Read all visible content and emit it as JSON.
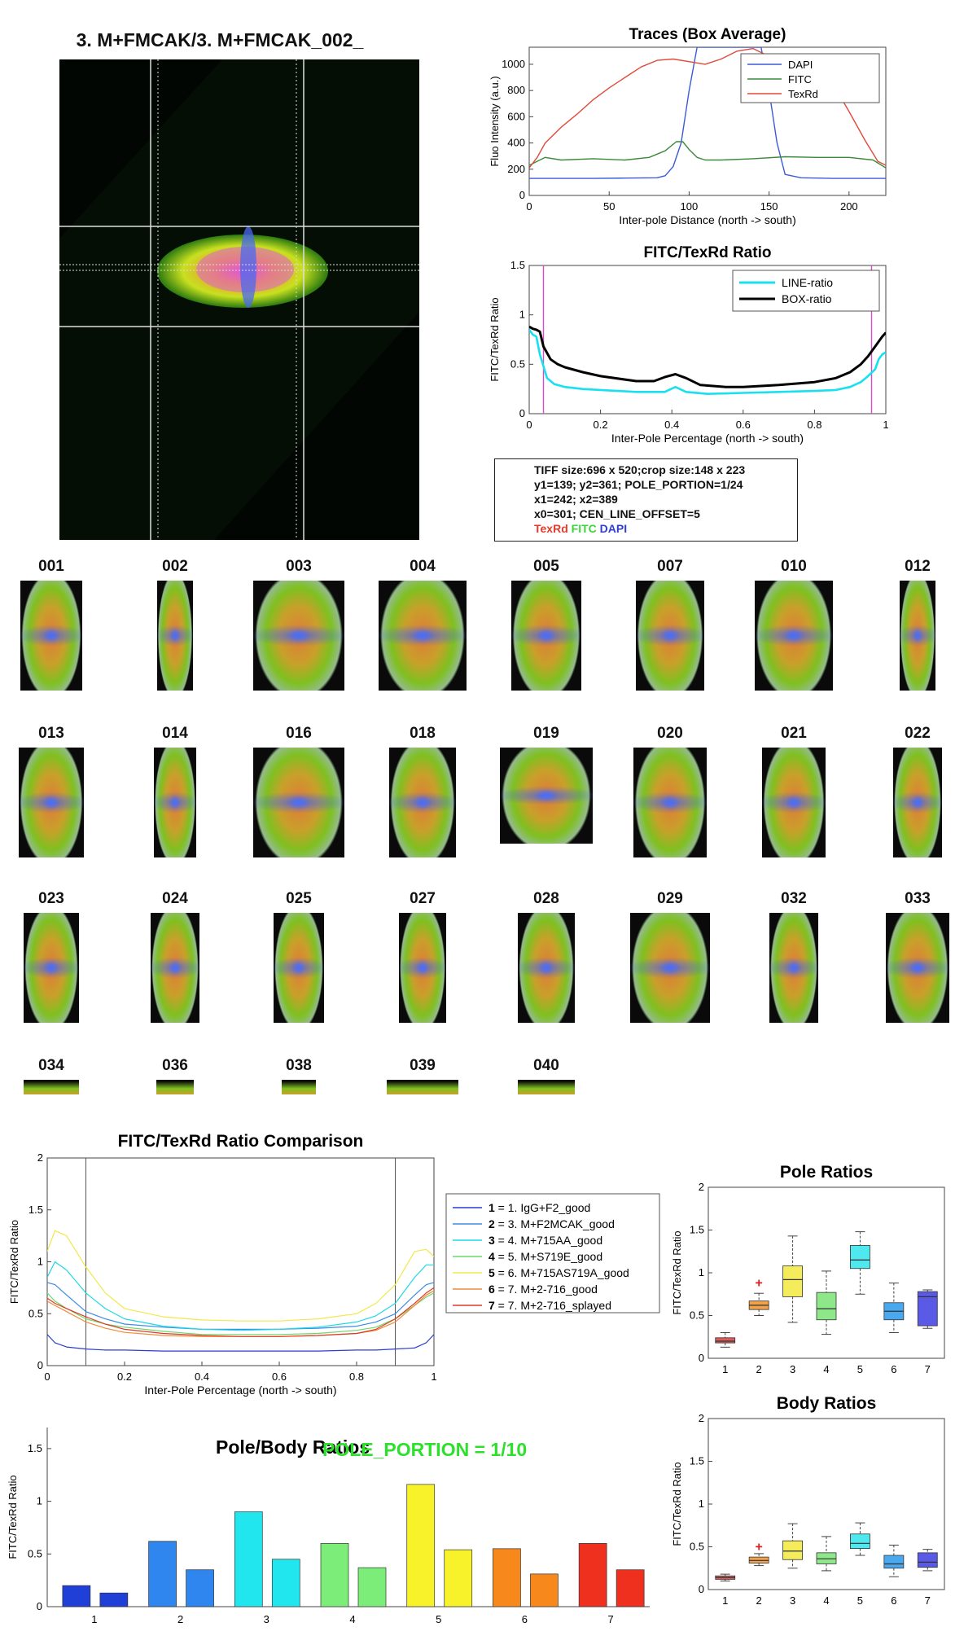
{
  "main_image": {
    "title": "3. M+FMCAK/3. M+FMCAK_002_"
  },
  "info_box": {
    "lines": [
      "TIFF size:696 x 520;crop size:148 x 223",
      "y1=139; y2=361; POLE_PORTION=1/24",
      "x1=242; x2=389",
      "x0=301; CEN_LINE_OFFSET=5"
    ],
    "channels": [
      {
        "label": "TexRd",
        "color": "#e23b2a"
      },
      {
        "label": "FITC",
        "color": "#3ad43a"
      },
      {
        "label": "DAPI",
        "color": "#2f3fd0"
      }
    ]
  },
  "thumbnails": {
    "row1": [
      "001",
      "002",
      "003",
      "004",
      "005",
      "007",
      "010",
      "012"
    ],
    "row2": [
      "013",
      "014",
      "016",
      "018",
      "019",
      "020",
      "021",
      "022"
    ],
    "row3": [
      "023",
      "024",
      "025",
      "027",
      "028",
      "029",
      "032",
      "033"
    ],
    "row4": [
      "034",
      "036",
      "038",
      "039",
      "040"
    ]
  },
  "pole_portion_label": "POLE_PORTION = 1/10",
  "colors": {
    "dapi": "#3b5bd6",
    "fitc": "#3a8a3a",
    "texrd": "#e04a3a",
    "line_ratio": "#18e0f0",
    "box_ratio": "#000000",
    "pole_line": "#d44fc4"
  },
  "chart_data": [
    {
      "id": "traces",
      "type": "line",
      "title": "Traces (Box Average)",
      "xlabel": "Inter-pole Distance (north -> south)",
      "ylabel": "Fluo Intensity (a.u.)",
      "xlim": [
        0,
        223
      ],
      "ylim": [
        0,
        1130
      ],
      "xticks": [
        0,
        50,
        100,
        150,
        200
      ],
      "yticks": [
        0,
        200,
        400,
        600,
        800,
        1000
      ],
      "legend": "top-right",
      "series": [
        {
          "name": "DAPI",
          "color": "#3b5bd6",
          "x": [
            0,
            20,
            40,
            60,
            80,
            85,
            90,
            95,
            100,
            105,
            110,
            115,
            120,
            125,
            130,
            135,
            140,
            145,
            150,
            155,
            160,
            170,
            190,
            223
          ],
          "y": [
            130,
            130,
            130,
            132,
            135,
            150,
            220,
            400,
            800,
            1130,
            1130,
            1130,
            1130,
            1130,
            1130,
            1130,
            1130,
            1130,
            800,
            400,
            160,
            135,
            130,
            130
          ]
        },
        {
          "name": "FITC",
          "color": "#3a8a3a",
          "x": [
            0,
            10,
            20,
            40,
            60,
            75,
            85,
            92,
            96,
            100,
            105,
            110,
            120,
            140,
            160,
            180,
            200,
            215,
            223
          ],
          "y": [
            230,
            290,
            270,
            280,
            270,
            290,
            340,
            410,
            410,
            350,
            290,
            270,
            270,
            280,
            295,
            290,
            290,
            270,
            210
          ]
        },
        {
          "name": "TexRd",
          "color": "#e04a3a",
          "x": [
            0,
            5,
            10,
            20,
            30,
            40,
            50,
            60,
            70,
            80,
            90,
            100,
            110,
            120,
            130,
            140,
            150,
            160,
            170,
            180,
            190,
            200,
            210,
            218,
            223
          ],
          "y": [
            210,
            290,
            400,
            520,
            620,
            730,
            820,
            900,
            980,
            1030,
            1040,
            1020,
            1000,
            1040,
            1100,
            1120,
            1060,
            1010,
            980,
            950,
            850,
            640,
            420,
            260,
            230
          ]
        }
      ]
    },
    {
      "id": "ratio",
      "type": "line",
      "title": "FITC/TexRd Ratio",
      "xlabel": "Inter-Pole Percentage (north -> south)",
      "ylabel": "FITC/TexRd Ratio",
      "xlim": [
        0,
        1
      ],
      "ylim": [
        0,
        1.5
      ],
      "xticks": [
        0,
        0.2,
        0.4,
        0.6,
        0.8,
        1
      ],
      "yticks": [
        0,
        0.5,
        1,
        1.5
      ],
      "pole_lines": [
        0.04,
        0.96
      ],
      "legend": "top-right",
      "series": [
        {
          "name": "LINE-ratio",
          "color": "#18e0f0",
          "x": [
            0,
            0.01,
            0.02,
            0.03,
            0.05,
            0.07,
            0.1,
            0.15,
            0.2,
            0.3,
            0.38,
            0.41,
            0.44,
            0.5,
            0.6,
            0.7,
            0.8,
            0.86,
            0.9,
            0.93,
            0.95,
            0.97,
            0.98,
            0.99,
            1
          ],
          "y": [
            0.85,
            0.8,
            0.78,
            0.6,
            0.36,
            0.3,
            0.27,
            0.25,
            0.24,
            0.22,
            0.22,
            0.27,
            0.22,
            0.2,
            0.21,
            0.22,
            0.23,
            0.24,
            0.27,
            0.32,
            0.38,
            0.45,
            0.55,
            0.6,
            0.62
          ]
        },
        {
          "name": "BOX-ratio",
          "color": "#000000",
          "x": [
            0,
            0.01,
            0.02,
            0.03,
            0.04,
            0.06,
            0.08,
            0.1,
            0.15,
            0.2,
            0.3,
            0.35,
            0.38,
            0.41,
            0.44,
            0.48,
            0.55,
            0.6,
            0.7,
            0.8,
            0.86,
            0.9,
            0.93,
            0.95,
            0.97,
            0.99,
            1
          ],
          "y": [
            0.88,
            0.86,
            0.85,
            0.83,
            0.68,
            0.55,
            0.5,
            0.47,
            0.42,
            0.38,
            0.33,
            0.33,
            0.37,
            0.4,
            0.36,
            0.29,
            0.27,
            0.27,
            0.29,
            0.32,
            0.36,
            0.42,
            0.5,
            0.58,
            0.68,
            0.78,
            0.82
          ]
        }
      ]
    },
    {
      "id": "comparison",
      "type": "line",
      "title": "FITC/TexRd Ratio Comparison",
      "xlabel": "Inter-Pole Percentage (north -> south)",
      "ylabel": "FITC/TexRd Ratio",
      "xlim": [
        0,
        1
      ],
      "ylim": [
        0,
        2
      ],
      "xticks": [
        0,
        0.2,
        0.4,
        0.6,
        0.8,
        1
      ],
      "yticks": [
        0,
        0.5,
        1,
        1.5,
        2
      ],
      "vlines": [
        0.1,
        0.9
      ],
      "legend": "right",
      "x": [
        0,
        0.02,
        0.05,
        0.1,
        0.15,
        0.2,
        0.3,
        0.4,
        0.5,
        0.6,
        0.7,
        0.8,
        0.85,
        0.9,
        0.95,
        0.98,
        1
      ],
      "series": [
        {
          "key": "1",
          "name": "1. IgG+F2_good",
          "color": "#2a3ccf",
          "values": [
            0.3,
            0.22,
            0.18,
            0.16,
            0.15,
            0.15,
            0.14,
            0.14,
            0.14,
            0.14,
            0.14,
            0.15,
            0.15,
            0.16,
            0.17,
            0.22,
            0.3
          ]
        },
        {
          "key": "2",
          "name": "3. M+F2MCAK_good",
          "color": "#3a8be6",
          "values": [
            0.8,
            0.78,
            0.68,
            0.52,
            0.45,
            0.4,
            0.37,
            0.35,
            0.35,
            0.35,
            0.36,
            0.38,
            0.42,
            0.5,
            0.68,
            0.78,
            0.8
          ]
        },
        {
          "key": "3",
          "name": "4. M+715AA_good",
          "color": "#20d8e8",
          "values": [
            0.85,
            1.0,
            0.92,
            0.7,
            0.55,
            0.45,
            0.38,
            0.35,
            0.34,
            0.35,
            0.37,
            0.42,
            0.48,
            0.6,
            0.85,
            0.97,
            0.97
          ]
        },
        {
          "key": "4",
          "name": "5. M+S719E_good",
          "color": "#6bd86b",
          "values": [
            0.7,
            0.62,
            0.55,
            0.45,
            0.4,
            0.37,
            0.33,
            0.3,
            0.3,
            0.3,
            0.31,
            0.34,
            0.37,
            0.45,
            0.58,
            0.66,
            0.7
          ]
        },
        {
          "key": "5",
          "name": "6. M+715AS719A_good",
          "color": "#f2e84a",
          "values": [
            1.1,
            1.3,
            1.25,
            0.95,
            0.7,
            0.55,
            0.47,
            0.44,
            0.43,
            0.43,
            0.45,
            0.5,
            0.6,
            0.78,
            1.1,
            1.12,
            1.05
          ]
        },
        {
          "key": "6",
          "name": "7. M+2-716_good",
          "color": "#f08a3a",
          "values": [
            0.62,
            0.58,
            0.52,
            0.42,
            0.36,
            0.32,
            0.29,
            0.28,
            0.28,
            0.28,
            0.29,
            0.31,
            0.34,
            0.42,
            0.58,
            0.68,
            0.72
          ]
        },
        {
          "key": "7",
          "name": "7. M+2-716_splayed",
          "color": "#e03a2a",
          "values": [
            0.65,
            0.6,
            0.55,
            0.47,
            0.4,
            0.35,
            0.31,
            0.29,
            0.28,
            0.28,
            0.29,
            0.31,
            0.35,
            0.45,
            0.6,
            0.7,
            0.75
          ]
        }
      ]
    },
    {
      "id": "pole_body",
      "type": "bar",
      "title": "Pole/Body Ratios",
      "xlabel": "",
      "ylabel": "FITC/TexRd Ratio",
      "ylim": [
        0,
        1.7
      ],
      "yticks": [
        0,
        0.5,
        1,
        1.5
      ],
      "categories": [
        "1",
        "2",
        "3",
        "4",
        "5",
        "6",
        "7"
      ],
      "colors": [
        "#1f3fd6",
        "#2f86ee",
        "#22e6ee",
        "#7ded7a",
        "#f7f22a",
        "#f6881c",
        "#f0301e"
      ],
      "series": [
        {
          "values": [
            0.2,
            0.62,
            0.9,
            0.6,
            1.16,
            0.55,
            0.6
          ]
        },
        {
          "values": [
            0.13,
            0.35,
            0.45,
            0.37,
            0.54,
            0.31,
            0.35
          ]
        }
      ]
    },
    {
      "id": "pole_box",
      "type": "box",
      "title": "Pole Ratios",
      "xlabel": "",
      "ylabel": "FITC/TexRd Ratio",
      "ylim": [
        0,
        2
      ],
      "yticks": [
        0,
        0.5,
        1,
        1.5,
        2
      ],
      "categories": [
        "1",
        "2",
        "3",
        "4",
        "5",
        "6",
        "7"
      ],
      "colors": [
        "#e05a5a",
        "#f2a24a",
        "#f4ec5a",
        "#8ee88a",
        "#4ee8ee",
        "#4aa8ee",
        "#5a5ae6"
      ],
      "boxes": [
        {
          "min": 0.13,
          "q1": 0.18,
          "median": 0.2,
          "q3": 0.24,
          "max": 0.3,
          "outliers": []
        },
        {
          "min": 0.5,
          "q1": 0.57,
          "median": 0.62,
          "q3": 0.67,
          "max": 0.76,
          "outliers": [
            0.88
          ]
        },
        {
          "min": 0.42,
          "q1": 0.72,
          "median": 0.92,
          "q3": 1.08,
          "max": 1.43,
          "outliers": []
        },
        {
          "min": 0.28,
          "q1": 0.45,
          "median": 0.58,
          "q3": 0.77,
          "max": 1.02,
          "outliers": []
        },
        {
          "min": 0.75,
          "q1": 1.05,
          "median": 1.15,
          "q3": 1.32,
          "max": 1.48,
          "outliers": []
        },
        {
          "min": 0.3,
          "q1": 0.45,
          "median": 0.55,
          "q3": 0.65,
          "max": 0.88,
          "outliers": []
        },
        {
          "min": 0.35,
          "q1": 0.38,
          "median": 0.72,
          "q3": 0.78,
          "max": 0.8,
          "outliers": []
        }
      ]
    },
    {
      "id": "body_box",
      "type": "box",
      "title": "Body Ratios",
      "xlabel": "",
      "ylabel": "FITC/TexRd Ratio",
      "ylim": [
        0,
        2
      ],
      "yticks": [
        0,
        0.5,
        1,
        1.5,
        2
      ],
      "categories": [
        "1",
        "2",
        "3",
        "4",
        "5",
        "6",
        "7"
      ],
      "colors": [
        "#e05a5a",
        "#f2a24a",
        "#f4ec5a",
        "#8ee88a",
        "#4ee8ee",
        "#4aa8ee",
        "#5a5ae6"
      ],
      "boxes": [
        {
          "min": 0.1,
          "q1": 0.12,
          "median": 0.14,
          "q3": 0.16,
          "max": 0.18,
          "outliers": []
        },
        {
          "min": 0.28,
          "q1": 0.31,
          "median": 0.34,
          "q3": 0.38,
          "max": 0.42,
          "outliers": [
            0.5
          ]
        },
        {
          "min": 0.25,
          "q1": 0.35,
          "median": 0.45,
          "q3": 0.57,
          "max": 0.77,
          "outliers": []
        },
        {
          "min": 0.22,
          "q1": 0.3,
          "median": 0.36,
          "q3": 0.43,
          "max": 0.62,
          "outliers": []
        },
        {
          "min": 0.4,
          "q1": 0.48,
          "median": 0.54,
          "q3": 0.65,
          "max": 0.78,
          "outliers": []
        },
        {
          "min": 0.15,
          "q1": 0.25,
          "median": 0.3,
          "q3": 0.4,
          "max": 0.52,
          "outliers": []
        },
        {
          "min": 0.22,
          "q1": 0.26,
          "median": 0.32,
          "q3": 0.43,
          "max": 0.47,
          "outliers": []
        }
      ]
    }
  ]
}
